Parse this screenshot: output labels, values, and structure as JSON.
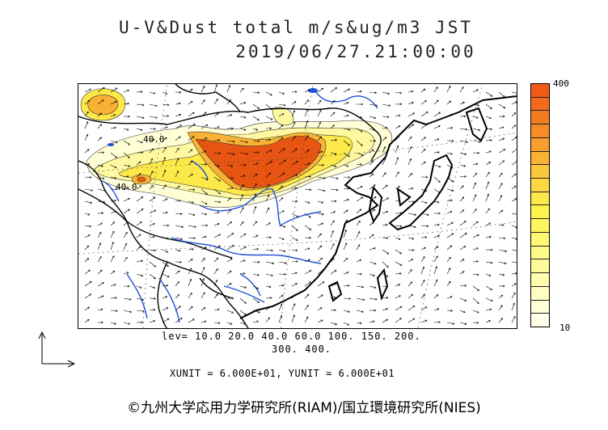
{
  "header": {
    "title_line1": "U-V&Dust total m/s&ug/m3 JST",
    "title_line2": "2019/06/27.21:00:00"
  },
  "map": {
    "contour_labels": [
      "40.0",
      "40.0"
    ]
  },
  "colorbar": {
    "max_label": "400",
    "min_label": "10",
    "colors": [
      "#f05a14",
      "#f26a1a",
      "#f47c20",
      "#f58c26",
      "#f79e2c",
      "#f9b234",
      "#fac63a",
      "#fcd842",
      "#fde84a",
      "#fef24e",
      "#fef660",
      "#fef872",
      "#fefa86",
      "#fefc9a",
      "#fefdae",
      "#fefdc2",
      "#fffed6",
      "#fffee8"
    ]
  },
  "legend": {
    "levels_line1": "lev= 10.0 20.0 40.0 60.0 100. 150. 200.",
    "levels_line2": "300. 400.",
    "units": "XUNIT = 6.000E+01, YUNIT = 6.000E+01"
  },
  "footer": {
    "credit": "©九州大学応用力学研究所(RIAM)/国立環境研究所(NIES)"
  }
}
